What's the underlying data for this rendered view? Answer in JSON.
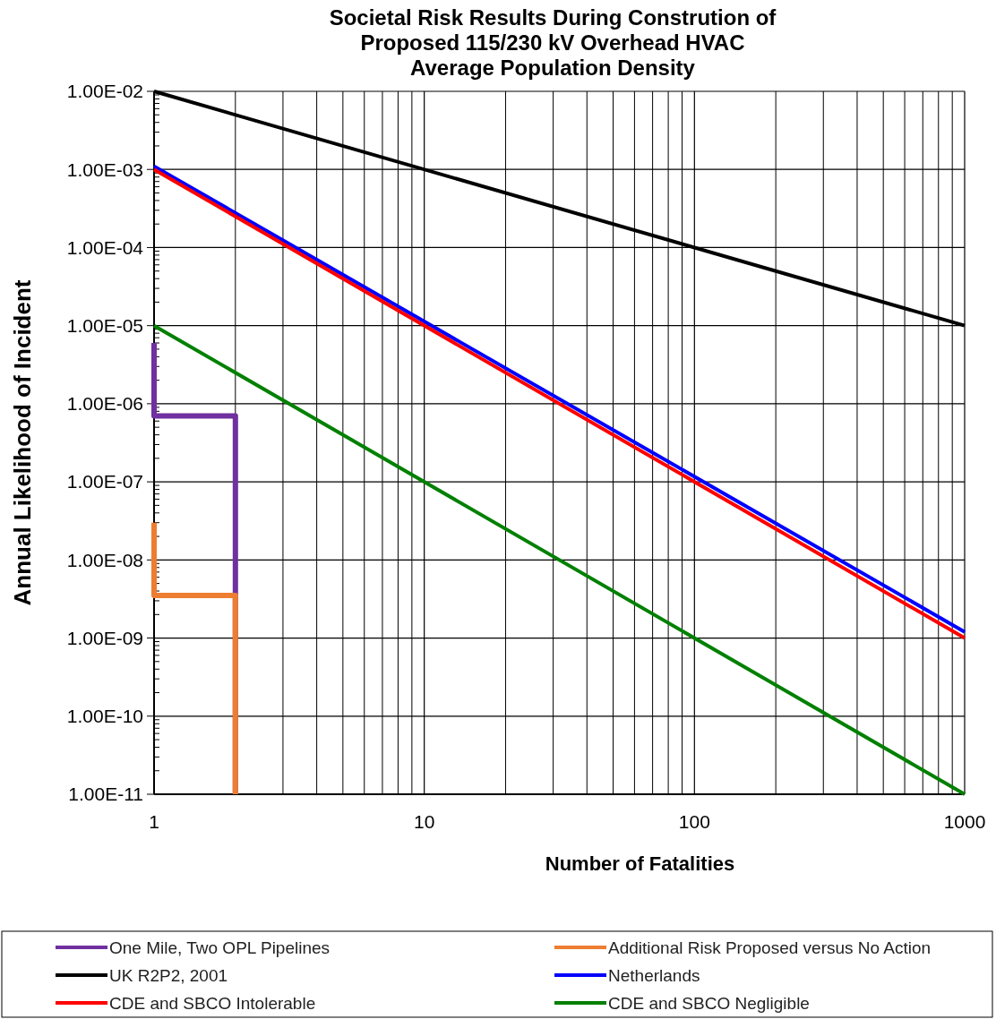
{
  "chart_data": {
    "type": "line",
    "title": "Societal Risk Results During Constrution of\nProposed 115/230 kV Overhead HVAC\nAverage Population Density",
    "xlabel": "Number  of Fatalities",
    "ylabel": "Annual Likelihood of Incident",
    "log": "xy",
    "grid": true,
    "legend": "bottom",
    "line_style": "solid",
    "xlim": [
      1,
      1000
    ],
    "xticks": [
      1,
      10,
      100,
      1000
    ],
    "ylim": [
      1e-11,
      0.01
    ],
    "yticks": [
      {
        "value": 1e-11,
        "label": "1.00E-11"
      },
      {
        "value": 1e-10,
        "label": "1.00E-10"
      },
      {
        "value": 1e-09,
        "label": "1.00E-09"
      },
      {
        "value": 1e-08,
        "label": "1.00E-08"
      },
      {
        "value": 1e-07,
        "label": "1.00E-07"
      },
      {
        "value": 1e-06,
        "label": "1.00E-06"
      },
      {
        "value": 1e-05,
        "label": "1.00E-05"
      },
      {
        "value": 0.0001,
        "label": "1.00E-04"
      },
      {
        "value": 0.001,
        "label": "1.00E-03"
      },
      {
        "value": 0.01,
        "label": "1.00E-02"
      }
    ],
    "series": [
      {
        "name": "One Mile, Two OPL Pipelines",
        "color": "#7030a0",
        "x": [
          1,
          1,
          2,
          2
        ],
        "values": [
          6e-06,
          7e-07,
          7e-07,
          1e-11
        ]
      },
      {
        "name": "Additional Risk Proposed versus No Action",
        "color": "#ed7d31",
        "x": [
          1,
          1,
          2,
          2
        ],
        "values": [
          3e-08,
          3.5e-09,
          3.5e-09,
          1e-11
        ]
      },
      {
        "name": "UK R2P2, 2001",
        "color": "#000000",
        "x": [
          1,
          1000
        ],
        "values": [
          0.01,
          1e-05
        ]
      },
      {
        "name": "Netherlands",
        "color": "#0000ff",
        "x": [
          1,
          1000
        ],
        "values": [
          0.0011,
          1.2e-09
        ]
      },
      {
        "name": "CDE and SBCO Intolerable",
        "color": "#ff0000",
        "x": [
          1,
          1000
        ],
        "values": [
          0.001,
          1e-09
        ]
      },
      {
        "name": "CDE and SBCO Negligible",
        "color": "#008000",
        "x": [
          1,
          1000
        ],
        "values": [
          1e-05,
          1e-11
        ]
      }
    ]
  }
}
